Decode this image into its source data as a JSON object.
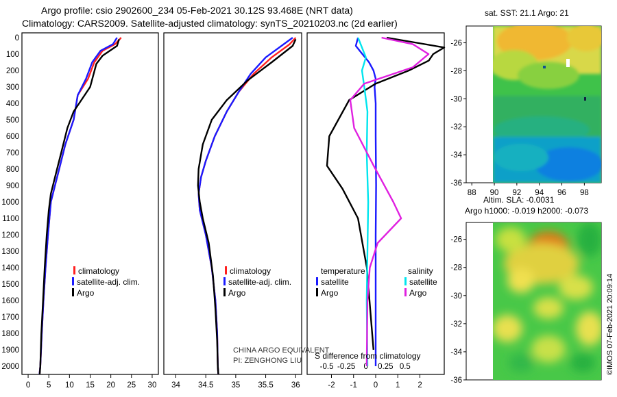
{
  "header": {
    "line1": "Argo profile: csio 2902600_234 05-Feb-2021 30.12S 93.468E (NRT data)",
    "line2": "Climatology: CARS2009. Satellite-adjusted climatology: synTS_20210203.nc (2d earlier)"
  },
  "colors": {
    "climatology": "#ff2020",
    "satellite": "#1a1aff",
    "argo": "#000000",
    "sat_salinity": "#00e5ee",
    "argo_salinity": "#e020e0"
  },
  "chart_data": [
    {
      "id": "temperature",
      "type": "line",
      "ylabel": "",
      "yticks": [
        0,
        100,
        200,
        300,
        400,
        500,
        600,
        700,
        800,
        900,
        1000,
        1100,
        1200,
        1300,
        1400,
        1500,
        1600,
        1700,
        1800,
        1900,
        2000
      ],
      "ylim": [
        2050,
        0
      ],
      "xlim": [
        -1.5,
        31.5
      ],
      "xticks": [
        0,
        5,
        10,
        15,
        20,
        25,
        30
      ],
      "legend": [
        "climatology",
        "satellite-adj. clim.",
        "Argo"
      ],
      "series": [
        {
          "name": "climatology",
          "color": "#ff2020",
          "x": [
            22.5,
            21,
            18,
            16,
            14.5,
            12,
            11,
            9,
            7.5,
            6.5,
            5.5,
            4.8,
            4.2,
            3.7,
            3.3,
            2.95,
            2.75
          ],
          "y": [
            0,
            40,
            80,
            150,
            250,
            350,
            500,
            650,
            800,
            900,
            1000,
            1200,
            1400,
            1600,
            1800,
            2000,
            2050
          ]
        },
        {
          "name": "satellite-adj. clim.",
          "color": "#1a1aff",
          "x": [
            21.5,
            20.5,
            17.5,
            15.5,
            14,
            12,
            11,
            9,
            7.5,
            6.5,
            5.5,
            4.8,
            4.2,
            3.7,
            3.3,
            2.95,
            2.75
          ],
          "y": [
            0,
            40,
            80,
            150,
            250,
            350,
            500,
            650,
            800,
            900,
            1000,
            1200,
            1400,
            1600,
            1800,
            2000,
            2050
          ]
        },
        {
          "name": "Argo",
          "color": "#000000",
          "x": [
            22,
            21.5,
            18,
            16.5,
            15,
            11,
            9.5,
            8,
            6.5,
            5.5,
            5,
            4.5,
            4,
            3.6,
            3.2,
            2.95,
            2.8
          ],
          "y": [
            10,
            50,
            110,
            160,
            300,
            450,
            550,
            700,
            850,
            950,
            1050,
            1200,
            1400,
            1600,
            1800,
            2000,
            2050
          ]
        }
      ],
      "annotations": []
    },
    {
      "id": "salinity",
      "type": "line",
      "xlim": [
        33.8,
        36.1
      ],
      "xticks": [
        34,
        34.5,
        35,
        35.5,
        36
      ],
      "xticklabels": [
        "34",
        "34.5",
        "35",
        "35.5",
        "36"
      ],
      "legend": [
        "climatology",
        "satellite-adj. clim.",
        "Argo"
      ],
      "series": [
        {
          "name": "climatology",
          "color": "#ff2020",
          "x": [
            36,
            35.9,
            35.6,
            35.3,
            35.05,
            34.85,
            34.65,
            34.5,
            34.42,
            34.38,
            34.4,
            34.5,
            34.6,
            34.66,
            34.69,
            34.7,
            34.71
          ],
          "y": [
            0,
            40,
            120,
            220,
            330,
            450,
            600,
            750,
            850,
            950,
            1050,
            1200,
            1400,
            1600,
            1800,
            2000,
            2050
          ]
        },
        {
          "name": "satellite-adj. clim.",
          "color": "#1a1aff",
          "x": [
            35.95,
            35.8,
            35.5,
            35.25,
            35.05,
            34.85,
            34.65,
            34.5,
            34.42,
            34.38,
            34.4,
            34.5,
            34.6,
            34.66,
            34.69,
            34.7,
            34.71
          ],
          "y": [
            0,
            40,
            120,
            220,
            330,
            450,
            600,
            750,
            850,
            950,
            1050,
            1200,
            1400,
            1600,
            1800,
            2000,
            2050
          ]
        },
        {
          "name": "Argo",
          "color": "#000000",
          "x": [
            36,
            35.95,
            35.6,
            35.2,
            34.85,
            34.6,
            34.45,
            34.38,
            34.37,
            34.4,
            34.45,
            34.55,
            34.62,
            34.66,
            34.69,
            34.7,
            34.71
          ],
          "y": [
            10,
            50,
            150,
            260,
            380,
            500,
            650,
            800,
            900,
            1000,
            1100,
            1250,
            1450,
            1650,
            1850,
            2000,
            2050
          ]
        }
      ],
      "annotations": [
        "CHINA ARGO EQUIVALENT",
        "PI: ZENGHONG LIU"
      ]
    },
    {
      "id": "difference",
      "type": "line",
      "xlim": [
        -3.1,
        3.1
      ],
      "temperature_xticks": [
        -2,
        -1,
        0,
        1,
        2
      ],
      "salinity_xticks": [
        -0.5,
        -0.25,
        0,
        0.25,
        0.5
      ],
      "salinity_xticklabels": [
        "-0.5",
        "-0.25",
        "0",
        "0.25",
        "0.5"
      ],
      "xlabel": "S difference from climatology",
      "legend_titles": [
        "temperature",
        "salinity"
      ],
      "legend": [
        "satellite",
        "Argo",
        "satellite",
        "Argo"
      ],
      "series": [
        {
          "name": "temperature satellite",
          "color": "#1a1aff",
          "x": [
            -0.8,
            -0.9,
            -0.6,
            -0.3,
            -0.1,
            0,
            -0.05,
            0,
            0,
            0.02,
            0,
            0,
            0
          ],
          "y": [
            0,
            50,
            100,
            150,
            200,
            250,
            300,
            400,
            600,
            900,
            1200,
            1600,
            2000
          ]
        },
        {
          "name": "temperature Argo",
          "color": "#000000",
          "x": [
            0.5,
            3.1,
            2.6,
            2.4,
            1.5,
            0,
            -1.2,
            -2.1,
            -2.2,
            -1.5,
            -0.8,
            -0.4,
            -0.1
          ],
          "y": [
            0,
            60,
            100,
            140,
            200,
            280,
            380,
            600,
            780,
            920,
            1100,
            1400,
            1900
          ]
        },
        {
          "name": "salinity satellite",
          "color": "#00e5ee",
          "x": [
            -0.1,
            -0.05,
            0,
            -0.05,
            -0.02,
            0.02,
            0.01,
            0.03,
            0.02,
            0.01,
            0.02
          ],
          "y": [
            0,
            60,
            120,
            200,
            300,
            450,
            700,
            1000,
            1300,
            1600,
            2000
          ]
        },
        {
          "name": "salinity Argo",
          "color": "#e020e0",
          "x": [
            0.2,
            0.6,
            0.8,
            0.6,
            -0.02,
            -0.2,
            -0.15,
            0.1,
            0.35,
            0.45,
            0.15,
            0.05,
            0.02,
            0.01
          ],
          "y": [
            0,
            40,
            100,
            180,
            280,
            380,
            550,
            780,
            1000,
            1100,
            1250,
            1400,
            1600,
            2000
          ]
        }
      ]
    }
  ],
  "maps": {
    "sst": {
      "title": "sat. SST: 21.1 Argo: 21",
      "xticks": [
        88,
        90,
        92,
        94,
        96,
        98
      ],
      "yticks": [
        -26,
        -28,
        -30,
        -32,
        -34,
        -36
      ],
      "xlim": [
        87.5,
        99.5
      ],
      "ylim": [
        -36,
        -24.8
      ]
    },
    "sla": {
      "title_line1": "Altim. SLA: -0.0031",
      "title_line2": "Argo h1000: -0.019 h2000: -0.073",
      "yticks": [
        -26,
        -28,
        -30,
        -32,
        -34,
        -36
      ],
      "xlim": [
        87.5,
        99.5
      ],
      "ylim": [
        -36,
        -24.8
      ]
    }
  },
  "footer": {
    "credit": "©IMOS 07-Feb-2021 20:09:14"
  }
}
